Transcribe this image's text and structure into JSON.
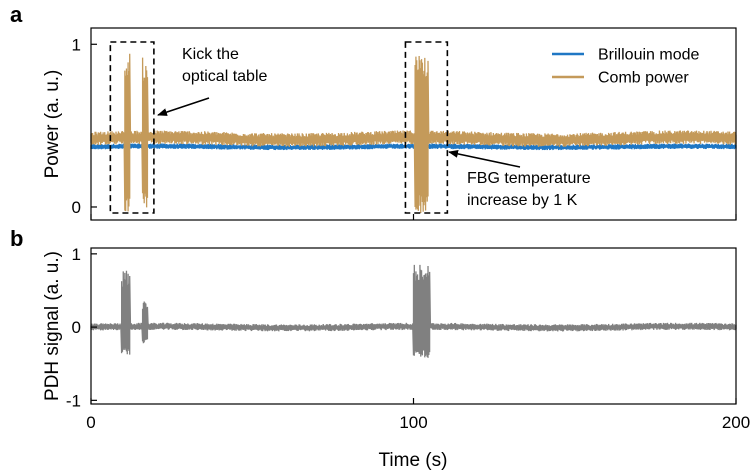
{
  "chart_data": [
    {
      "panel_label": "a",
      "type": "line",
      "xlim": [
        0,
        200
      ],
      "ylim": [
        -0.08,
        1.1
      ],
      "yticks": [
        0,
        1
      ],
      "ytick_labels": [
        "0",
        "1"
      ],
      "ylabel": "Power (a. u.)",
      "grid": false,
      "legend_position": "top-right",
      "series": [
        {
          "name": "Brillouin mode",
          "color": "#1f77c4",
          "baseline": 0.37,
          "noise": 0.012,
          "bursts": []
        },
        {
          "name": "Comb power",
          "color": "#c49a5a",
          "baseline": 0.42,
          "noise": 0.03,
          "bursts": [
            {
              "x_start": 10.5,
              "x_end": 12.0,
              "min": -0.03,
              "max": 0.95
            },
            {
              "x_start": 16.0,
              "x_end": 17.5,
              "min": -0.02,
              "max": 0.92
            },
            {
              "x_start": 100.5,
              "x_end": 104.5,
              "min": -0.04,
              "max": 0.95
            }
          ]
        }
      ],
      "annotations": [
        {
          "text_lines": [
            "Kick the",
            "optical table"
          ],
          "box_x": [
            6,
            19.5
          ]
        },
        {
          "text_lines": [
            "FBG temperature",
            "increase by 1 K"
          ],
          "box_x": [
            97.5,
            110.5
          ]
        }
      ]
    },
    {
      "panel_label": "b",
      "type": "line",
      "xlim": [
        0,
        200
      ],
      "ylim": [
        -1.05,
        1.08
      ],
      "yticks": [
        -1,
        0,
        1
      ],
      "ytick_labels": [
        "-1",
        "0",
        "1"
      ],
      "xticks": [
        0,
        100,
        200
      ],
      "xtick_labels": [
        "0",
        "100",
        "200"
      ],
      "xlabel": "Time (s)",
      "ylabel": "PDH signal (a. u.)",
      "grid": false,
      "series": [
        {
          "name": "",
          "color": "#808080",
          "baseline": 0.0,
          "noise": 0.035,
          "bursts": [
            {
              "x_start": 9.5,
              "x_end": 12.0,
              "min": -0.38,
              "max": 0.78
            },
            {
              "x_start": 16.0,
              "x_end": 17.5,
              "min": -0.22,
              "max": 0.35
            },
            {
              "x_start": 100.0,
              "x_end": 105.0,
              "min": -0.42,
              "max": 0.85
            }
          ]
        }
      ]
    }
  ]
}
